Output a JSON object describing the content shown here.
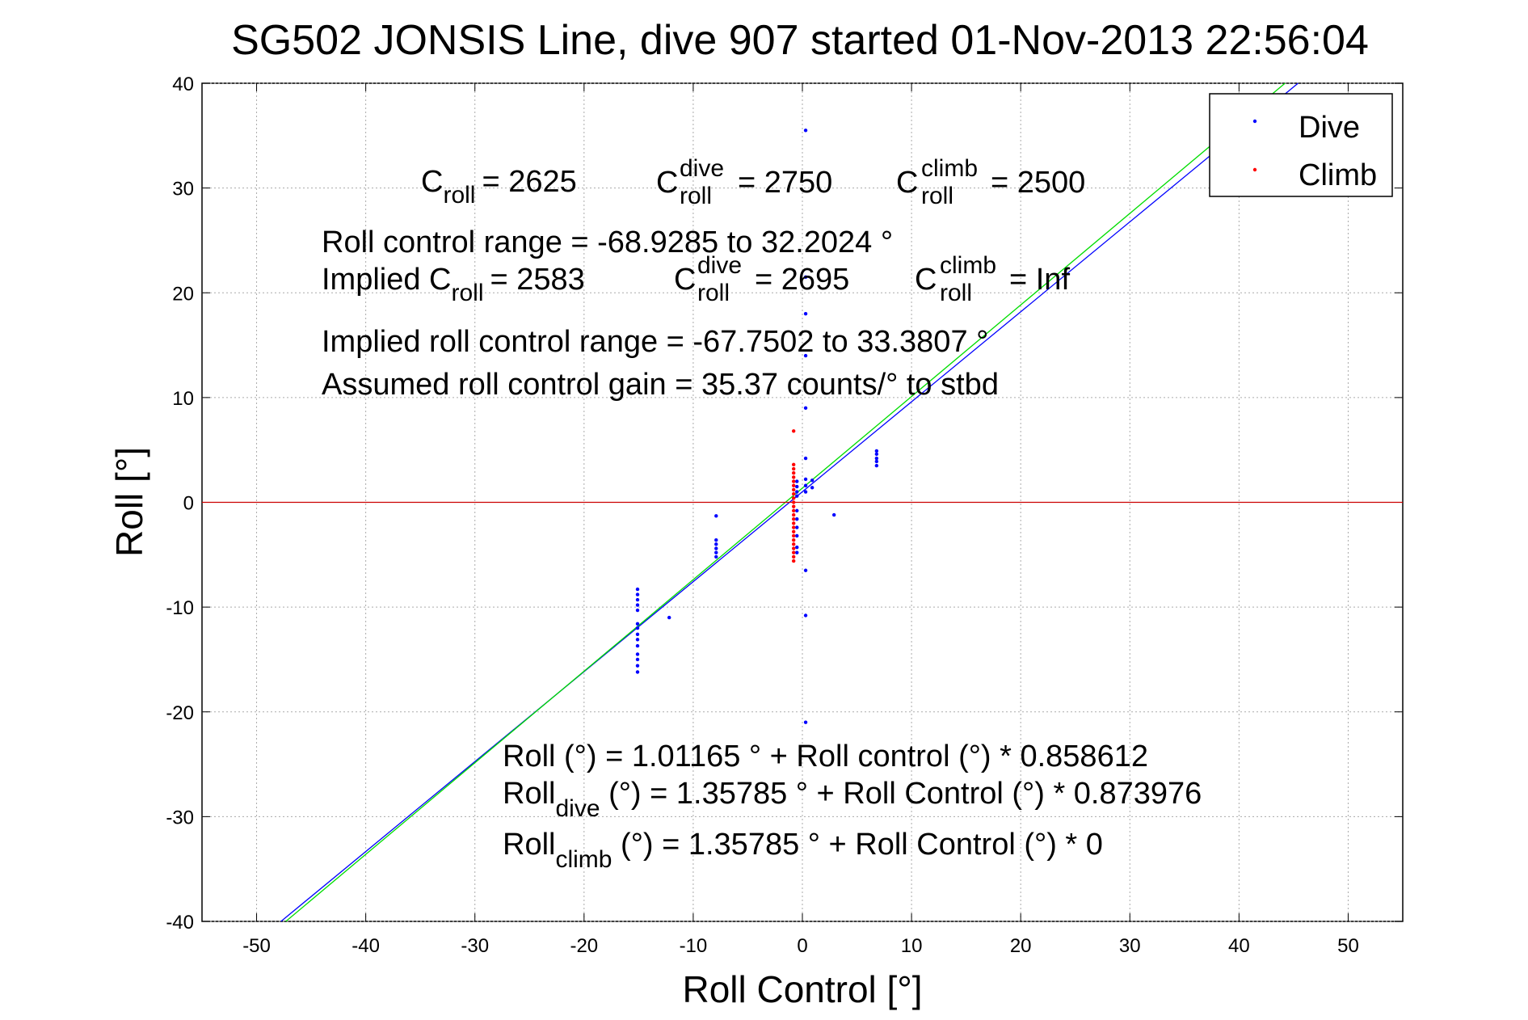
{
  "chart_data": {
    "type": "scatter",
    "title": "SG502 JONSIS Line, dive 907 started 01-Nov-2013 22:56:04",
    "xlabel": "Roll Control [°]",
    "ylabel": "Roll [°]",
    "xlim": [
      -55,
      55
    ],
    "ylim": [
      -40,
      40
    ],
    "x_ticks": [
      -50,
      -40,
      -30,
      -20,
      -10,
      0,
      10,
      20,
      30,
      40,
      50
    ],
    "y_ticks": [
      -40,
      -30,
      -20,
      -10,
      0,
      10,
      20,
      30,
      40
    ],
    "x_tick_labels": [
      "-50",
      "-40",
      "-30",
      "-20",
      "-10",
      "0",
      "10",
      "20",
      "30",
      "40",
      "50"
    ],
    "y_tick_labels": [
      "-40",
      "-30",
      "-20",
      "-10",
      "0",
      "10",
      "20",
      "30",
      "40"
    ],
    "grid": true,
    "legend_position": "top-right",
    "series": [
      {
        "name": "Dive",
        "color": "#0000ff",
        "marker": "dot",
        "points": [
          [
            -15.1,
            -8.3
          ],
          [
            -15.1,
            -8.8
          ],
          [
            -15.1,
            -9.3
          ],
          [
            -15.1,
            -9.8
          ],
          [
            -15.1,
            -10.3
          ],
          [
            -15.1,
            -11.6
          ],
          [
            -15.1,
            -12.0
          ],
          [
            -15.1,
            -12.6
          ],
          [
            -15.1,
            -13.1
          ],
          [
            -15.1,
            -13.7
          ],
          [
            -15.1,
            -14.5
          ],
          [
            -15.1,
            -15.0
          ],
          [
            -15.1,
            -15.6
          ],
          [
            -15.1,
            -16.2
          ],
          [
            -12.2,
            -11.0
          ],
          [
            -7.9,
            -1.3
          ],
          [
            -7.9,
            -3.6
          ],
          [
            -7.9,
            -4.0
          ],
          [
            -7.9,
            -4.4
          ],
          [
            -7.9,
            -4.8
          ],
          [
            -7.9,
            -5.2
          ],
          [
            -0.5,
            0.6
          ],
          [
            -0.5,
            1.0
          ],
          [
            -0.5,
            1.5
          ],
          [
            -0.5,
            2.0
          ],
          [
            -0.5,
            -0.8
          ],
          [
            -0.5,
            -1.6
          ],
          [
            -0.5,
            -2.4
          ],
          [
            -0.5,
            -3.2
          ],
          [
            -0.5,
            -4.3
          ],
          [
            -0.5,
            -4.8
          ],
          [
            0.3,
            35.5
          ],
          [
            0.3,
            21.5
          ],
          [
            0.3,
            18.0
          ],
          [
            0.3,
            14.0
          ],
          [
            0.3,
            9.0
          ],
          [
            0.3,
            4.2
          ],
          [
            0.3,
            2.2
          ],
          [
            0.3,
            1.6
          ],
          [
            0.3,
            1.0
          ],
          [
            0.3,
            -6.5
          ],
          [
            0.3,
            -10.8
          ],
          [
            0.3,
            -21.0
          ],
          [
            0.9,
            1.4
          ],
          [
            0.9,
            2.1
          ],
          [
            2.9,
            -1.2
          ],
          [
            6.8,
            3.5
          ],
          [
            6.8,
            3.9
          ],
          [
            6.8,
            4.2
          ],
          [
            6.8,
            4.6
          ],
          [
            6.8,
            4.9
          ]
        ]
      },
      {
        "name": "Climb",
        "color": "#ff0000",
        "marker": "dot",
        "points": [
          [
            -0.8,
            6.8
          ],
          [
            -0.8,
            3.6
          ],
          [
            -0.8,
            3.2
          ],
          [
            -0.8,
            2.8
          ],
          [
            -0.8,
            2.4
          ],
          [
            -0.8,
            2.0
          ],
          [
            -0.8,
            1.6
          ],
          [
            -0.8,
            1.2
          ],
          [
            -0.8,
            0.8
          ],
          [
            -0.8,
            0.4
          ],
          [
            -0.8,
            0.0
          ],
          [
            -0.8,
            -0.4
          ],
          [
            -0.8,
            -0.8
          ],
          [
            -0.8,
            -1.2
          ],
          [
            -0.8,
            -1.6
          ],
          [
            -0.8,
            -2.0
          ],
          [
            -0.8,
            -2.4
          ],
          [
            -0.8,
            -2.8
          ],
          [
            -0.8,
            -3.2
          ],
          [
            -0.8,
            -3.6
          ],
          [
            -0.8,
            -4.0
          ],
          [
            -0.8,
            -4.4
          ],
          [
            -0.8,
            -4.8
          ],
          [
            -0.8,
            -5.2
          ],
          [
            -0.8,
            -5.6
          ]
        ]
      }
    ],
    "lines": [
      {
        "color": "#0000ff",
        "intercept": 1.01165,
        "slope": 0.858612
      },
      {
        "color": "#00dd00",
        "intercept": 1.35785,
        "slope": 0.873976
      },
      {
        "color": "#cc0000",
        "intercept": 0,
        "slope": 0
      }
    ]
  },
  "annotations": {
    "c_roll": {
      "base": "C",
      "sub": "roll",
      "value": "= 2625"
    },
    "c_roll_dive": {
      "base": "C",
      "sub": "roll",
      "sup": "dive",
      "value": "= 2750"
    },
    "c_roll_climb": {
      "base": "C",
      "sub": "roll",
      "sup": "climb",
      "value": "= 2500"
    },
    "roll_control_range": "Roll control range = -68.9285 to 32.2024 °",
    "implied_c_roll": {
      "base": "Implied C",
      "sub": "roll",
      "value": "= 2583"
    },
    "implied_c_roll_dive": {
      "base": "C",
      "sub": "roll",
      "sup": "dive",
      "value": "= 2695"
    },
    "implied_c_roll_climb": {
      "base": "C",
      "sub": "roll",
      "sup": "climb",
      "value": "=  Inf"
    },
    "implied_range": "Implied roll control range = -67.7502 to 33.3807 °",
    "assumed_gain": "Assumed roll control gain = 35.37 counts/° to stbd",
    "fit_all": "Roll (°) = 1.01165 ° + Roll control (°) * 0.858612",
    "fit_dive": {
      "base": "Roll",
      "sub": "dive",
      "rest": " (°) = 1.35785 ° + Roll Control (°) * 0.873976"
    },
    "fit_climb": {
      "base": "Roll",
      "sub": "climb",
      "rest": " (°) = 1.35785 ° + Roll Control (°) * 0"
    }
  }
}
